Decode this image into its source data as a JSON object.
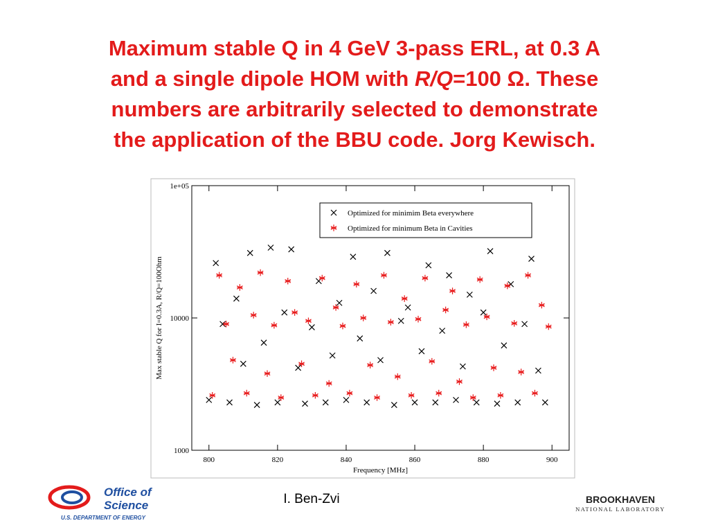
{
  "slide": {
    "title": {
      "line1": "Maximum stable Q in 4 GeV 3-pass ERL, at 0.3 A",
      "line2a": "and a single dipole HOM with ",
      "line2_italic": "R/Q",
      "line2b": "=100 Ω. These",
      "line3": "numbers are arbitrarily selected to demonstrate",
      "line4": "the application of the BBU code. Jorg Kewisch."
    },
    "author": "I. Ben-Zvi",
    "left_logo": {
      "line1": "Office of",
      "line2": "Science",
      "line3": "U.S. DEPARTMENT OF ENERGY"
    },
    "right_logo": {
      "line1": "BROOKHAVEN",
      "line2": "NATIONAL LABORATORY"
    }
  },
  "chart_data": {
    "type": "scatter",
    "x_label": "Frequency [MHz]",
    "y_label": "Max stable Q for I=0.3A, R/Q=100Ohm",
    "xlim": [
      795,
      905
    ],
    "xticks": [
      800,
      820,
      840,
      860,
      880,
      900
    ],
    "ylim": [
      1000,
      100000
    ],
    "yticks": [
      1000,
      10000,
      {
        "value": 100000,
        "label": "1e+05"
      }
    ],
    "y_log": true,
    "legend": "top-right",
    "series": [
      {
        "name": "Optimized for minimim Beta everywhere",
        "color": "#000000",
        "marker": "x",
        "x": [
          800,
          802,
          804,
          806,
          808,
          810,
          812,
          814,
          816,
          818,
          820,
          822,
          824,
          826,
          828,
          830,
          832,
          834,
          836,
          838,
          840,
          842,
          844,
          846,
          848,
          850,
          852,
          854,
          856,
          858,
          860,
          862,
          864,
          866,
          868,
          870,
          872,
          874,
          876,
          878,
          880,
          882,
          884,
          886,
          888,
          890,
          892,
          894,
          896,
          898
        ],
        "values": [
          2400,
          26000,
          9000,
          2300,
          14000,
          4500,
          31000,
          2200,
          6500,
          34000,
          2300,
          11000,
          33000,
          4200,
          2250,
          8500,
          19000,
          2300,
          5200,
          13000,
          2400,
          29000,
          7000,
          2300,
          16000,
          4800,
          31000,
          2200,
          9500,
          12000,
          2300,
          5600,
          25000,
          2300,
          8000,
          21000,
          2400,
          4300,
          15000,
          2300,
          11000,
          32000,
          2250,
          6200,
          18000,
          2300,
          9000,
          28000,
          4000,
          2300
        ]
      },
      {
        "name": "Optimized for minimum Beta in Cavities",
        "color": "#e8191a",
        "marker": "asterisk",
        "x": [
          801,
          803,
          805,
          807,
          809,
          811,
          813,
          815,
          817,
          819,
          821,
          823,
          825,
          827,
          829,
          831,
          833,
          835,
          837,
          839,
          841,
          843,
          845,
          847,
          849,
          851,
          853,
          855,
          857,
          859,
          861,
          863,
          865,
          867,
          869,
          871,
          873,
          875,
          877,
          879,
          881,
          883,
          885,
          887,
          889,
          891,
          893,
          895,
          897,
          899
        ],
        "values": [
          2600,
          21000,
          9000,
          4800,
          17000,
          2700,
          10500,
          22000,
          3800,
          8800,
          2500,
          19000,
          11000,
          4500,
          9500,
          2600,
          20000,
          3200,
          12000,
          8700,
          2700,
          18000,
          10000,
          4400,
          2500,
          21000,
          9300,
          3600,
          14000,
          2600,
          9800,
          20000,
          4700,
          2700,
          11500,
          16000,
          3300,
          8900,
          2500,
          19500,
          10200,
          4200,
          2600,
          17500,
          9100,
          3900,
          21000,
          2700,
          12500,
          8600
        ]
      }
    ]
  }
}
